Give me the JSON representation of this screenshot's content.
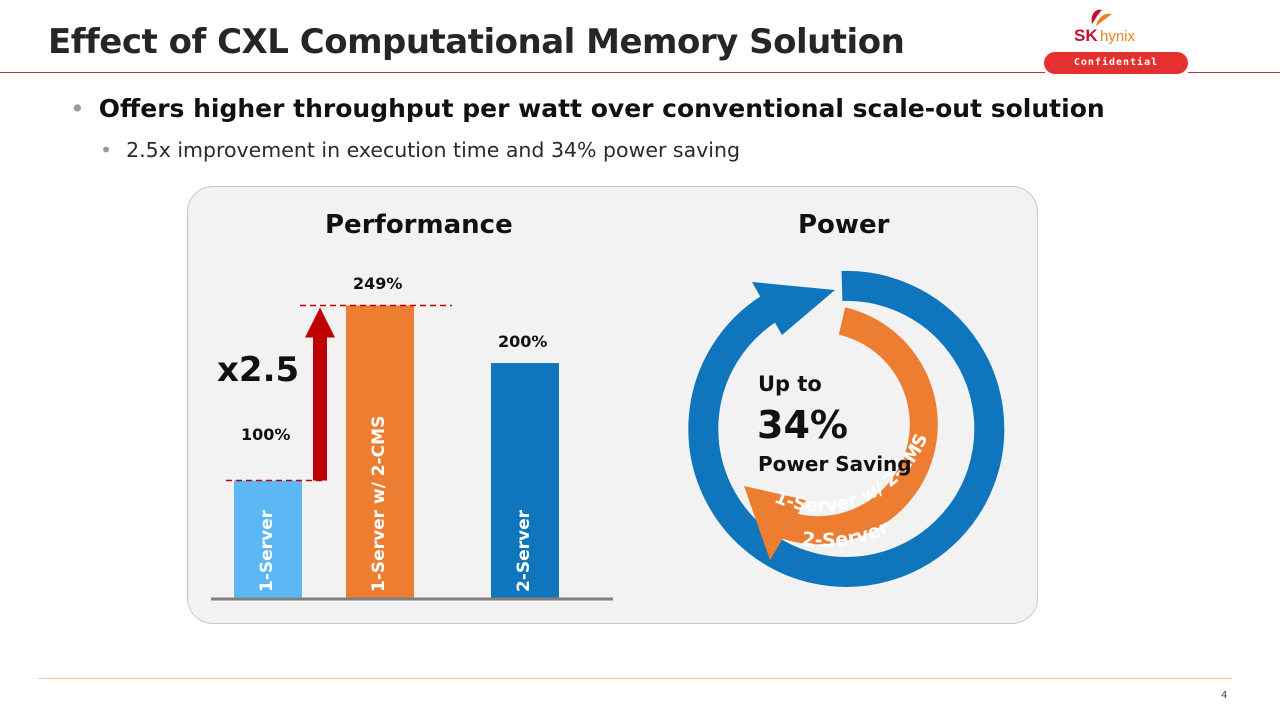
{
  "slide": {
    "title": "Effect of CXL Computational Memory Solution",
    "logo": {
      "brand": "SK",
      "sub": "hynix",
      "badge": "Confidential"
    },
    "bullet_main": "Offers higher throughput per watt over conventional scale-out solution",
    "bullet_sub": "2.5x improvement in execution time and 34% power saving",
    "page_number": "4"
  },
  "performance": {
    "heading": "Performance",
    "multiplier": "x2.5",
    "bars": [
      {
        "label": "1-Server",
        "value_text": "100%",
        "color": "#5bb8f5"
      },
      {
        "label": "1-Server w/ 2-CMS",
        "value_text": "249%",
        "color": "#ed7d31"
      },
      {
        "label": "2-Server",
        "value_text": "200%",
        "color": "#0f75bc"
      }
    ],
    "colors": {
      "arrow": "#c00000",
      "baseline": "#808080"
    }
  },
  "power": {
    "heading": "Power",
    "line1": "Up to",
    "percent": "34%",
    "line3": "Power Saving",
    "outer_ring_label": "2-Server",
    "inner_ring_label": "1-Server w/ 2-CMS",
    "colors": {
      "outer": "#0f75bc",
      "inner": "#ed7d31"
    }
  },
  "chart_data": {
    "type": "bar",
    "title": "Performance",
    "categories": [
      "1-Server",
      "1-Server w/ 2-CMS",
      "2-Server"
    ],
    "values": [
      100,
      249,
      200
    ],
    "ylim": [
      0,
      260
    ],
    "grid": false,
    "annotations": [
      "x2.5"
    ]
  }
}
